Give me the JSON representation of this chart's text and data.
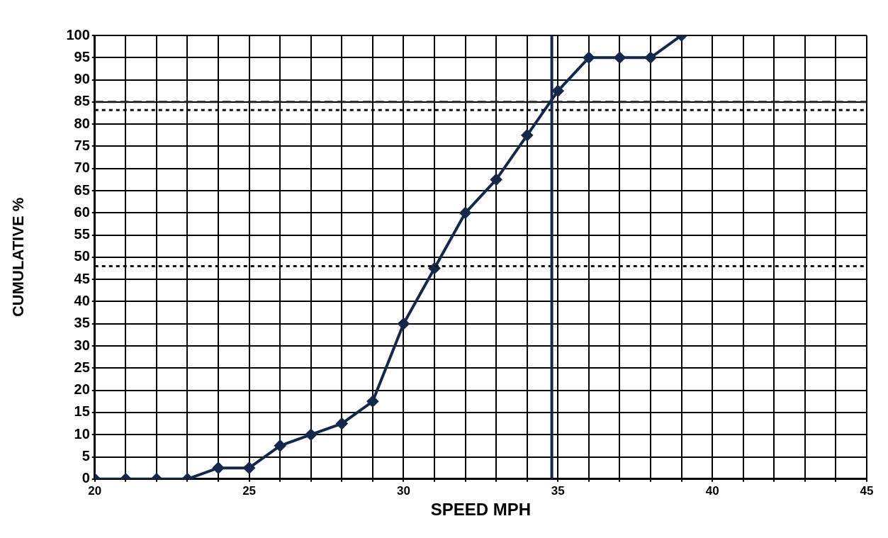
{
  "chart_data": {
    "type": "line",
    "xlabel": "SPEED MPH",
    "ylabel": "CUMULATIVE %",
    "x": [
      20,
      21,
      22,
      23,
      24,
      25,
      26,
      27,
      28,
      29,
      30,
      31,
      32,
      33,
      34,
      35,
      36,
      37,
      38,
      39
    ],
    "series": [
      {
        "color": "#13284a",
        "values": [
          0,
          0,
          0,
          0,
          2.5,
          2.5,
          7.5,
          10,
          12.5,
          17.5,
          35,
          47.5,
          60,
          67.5,
          77.5,
          87.5,
          95,
          95,
          95,
          100
        ]
      }
    ],
    "xlim": [
      20,
      45
    ],
    "xticks": [
      20,
      {
        "value": 21,
        "label": null
      },
      {
        "value": 22,
        "label": null
      },
      {
        "value": 23,
        "label": null
      },
      {
        "value": 24,
        "label": null
      },
      25,
      {
        "value": 26,
        "label": null
      },
      {
        "value": 27,
        "label": null
      },
      {
        "value": 28,
        "label": null
      },
      {
        "value": 29,
        "label": null
      },
      30,
      {
        "value": 31,
        "label": null
      },
      {
        "value": 32,
        "label": null
      },
      {
        "value": 33,
        "label": null
      },
      {
        "value": 34,
        "label": null
      },
      35,
      {
        "value": 36,
        "label": null
      },
      {
        "value": 37,
        "label": null
      },
      {
        "value": 38,
        "label": null
      },
      {
        "value": 39,
        "label": null
      },
      40,
      {
        "value": 41,
        "label": null
      },
      {
        "value": 42,
        "label": null
      },
      {
        "value": 43,
        "label": null
      },
      {
        "value": 44,
        "label": null
      },
      45
    ],
    "ylim": [
      0,
      100
    ],
    "yticks": [
      0,
      5,
      10,
      15,
      20,
      25,
      30,
      35,
      40,
      45,
      50,
      55,
      60,
      65,
      70,
      75,
      80,
      85,
      90,
      95,
      100
    ],
    "grid": true,
    "marker": "diamond",
    "line_style": "solid",
    "legend": false,
    "ref_lines": [
      {
        "axis": "y",
        "value": 85,
        "line_style": "dashed",
        "color": "#222222"
      },
      {
        "axis": "y",
        "value": 83.2,
        "line_style": "dotted",
        "color": "#111111"
      },
      {
        "axis": "y",
        "value": 48,
        "line_style": "dotted",
        "color": "#111111"
      },
      {
        "axis": "x",
        "value": 34.8,
        "line_style": "solid",
        "color": "#13284a"
      }
    ]
  }
}
